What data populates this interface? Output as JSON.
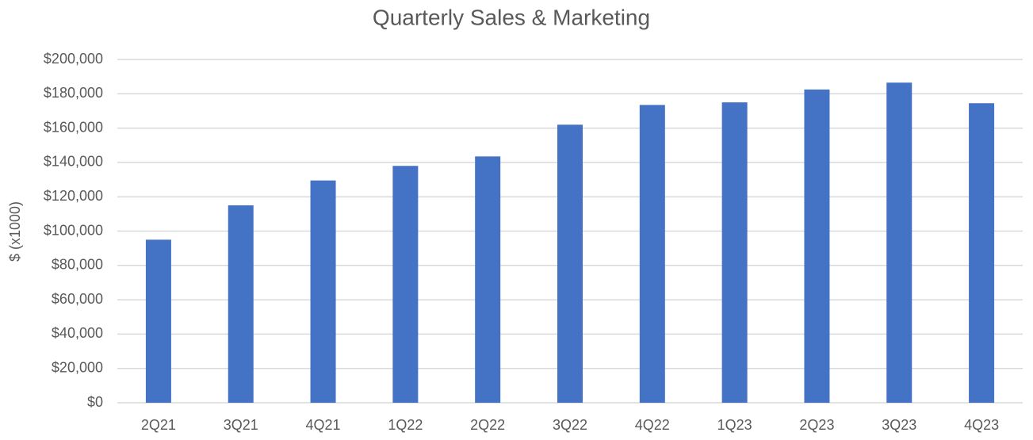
{
  "chart_data": {
    "type": "bar",
    "title": "Quarterly Sales & Marketing",
    "y_label": "$ (x1000)",
    "categories": [
      "2Q21",
      "3Q21",
      "4Q21",
      "1Q22",
      "2Q22",
      "3Q22",
      "4Q22",
      "1Q23",
      "2Q23",
      "3Q23",
      "4Q23"
    ],
    "values": [
      95000,
      115000,
      129500,
      138000,
      143500,
      162000,
      173500,
      175000,
      182500,
      186500,
      174500
    ],
    "color": "#4472c4",
    "ylim": [
      0,
      200000
    ],
    "yticks": [
      {
        "value": 0,
        "label": "$0"
      },
      {
        "value": 20000,
        "label": "$20,000"
      },
      {
        "value": 40000,
        "label": "$40,000"
      },
      {
        "value": 60000,
        "label": "$60,000"
      },
      {
        "value": 80000,
        "label": "$80,000"
      },
      {
        "value": 100000,
        "label": "$100,000"
      },
      {
        "value": 120000,
        "label": "$120,000"
      },
      {
        "value": 140000,
        "label": "$140,000"
      },
      {
        "value": 160000,
        "label": "$160,000"
      },
      {
        "value": 180000,
        "label": "$180,000"
      },
      {
        "value": 200000,
        "label": "$200,000"
      }
    ],
    "grid": true
  }
}
